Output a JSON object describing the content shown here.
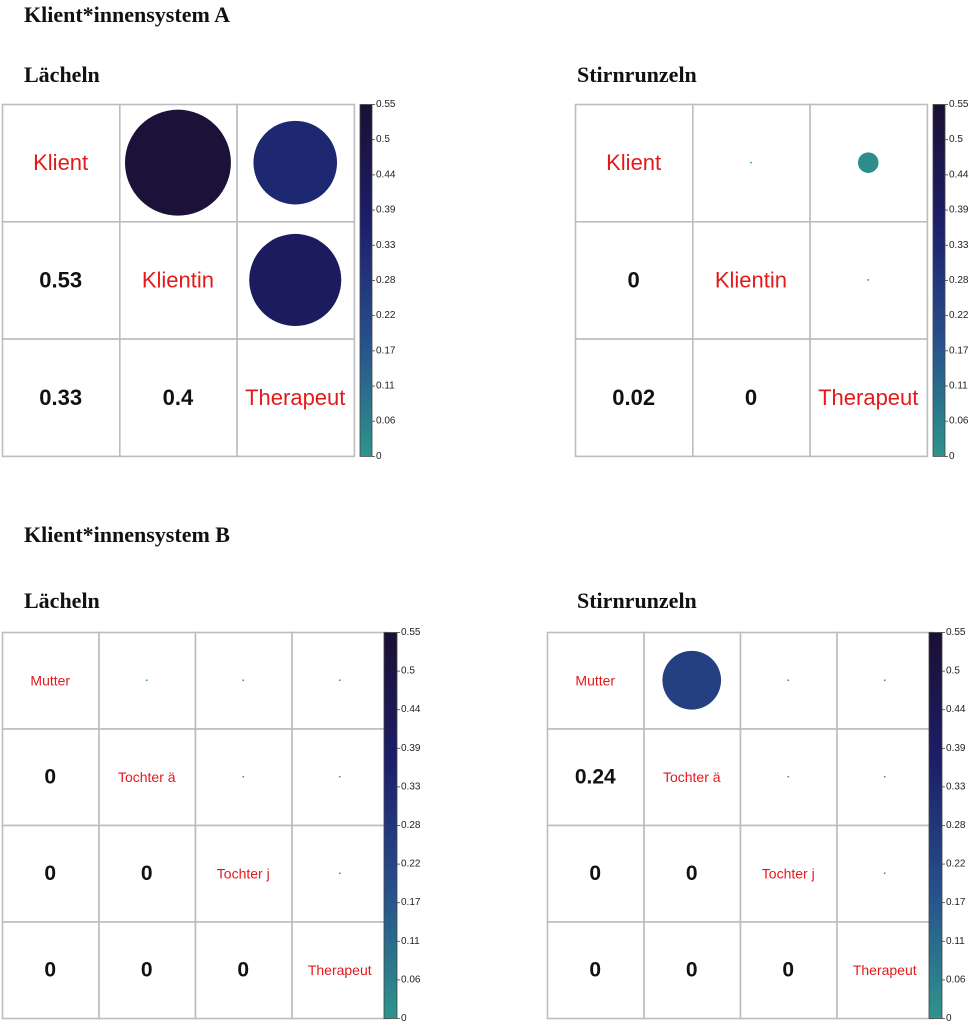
{
  "sections": [
    {
      "title": "Klient*innensystem A"
    },
    {
      "title": "Klient*innensystem B"
    }
  ],
  "chart_data": [
    {
      "type": "heatmap",
      "subtype": "correlation-plot-mixed",
      "section": "Klient*innensystem A",
      "title": "Lächeln",
      "variables": [
        "Klient",
        "Klientin",
        "Therapeut"
      ],
      "matrix": [
        [
          1,
          0.53,
          0.33
        ],
        [
          0.53,
          1,
          0.4
        ],
        [
          0.33,
          0.4,
          1
        ]
      ],
      "upper": "circle",
      "lower": "number",
      "diagonal": "variable-name",
      "colorbar": {
        "min": 0,
        "max": 0.55,
        "ticks": [
          "0",
          "0.06",
          "0.11",
          "0.17",
          "0.22",
          "0.28",
          "0.33",
          "0.39",
          "0.44",
          "0.5",
          "0.55"
        ],
        "colors": [
          "#2e948c",
          "#274f8c",
          "#1c1e6a",
          "#1b0f33"
        ]
      }
    },
    {
      "type": "heatmap",
      "subtype": "correlation-plot-mixed",
      "section": "Klient*innensystem A",
      "title": "Stirnrunzeln",
      "variables": [
        "Klient",
        "Klientin",
        "Therapeut"
      ],
      "matrix": [
        [
          1,
          0,
          0.02
        ],
        [
          0,
          1,
          0
        ],
        [
          0.02,
          0,
          1
        ]
      ],
      "upper": "circle",
      "lower": "number",
      "diagonal": "variable-name",
      "colorbar": {
        "min": 0,
        "max": 0.55,
        "ticks": [
          "0",
          "0.06",
          "0.11",
          "0.17",
          "0.22",
          "0.28",
          "0.33",
          "0.39",
          "0.44",
          "0.5",
          "0.55"
        ],
        "colors": [
          "#2e948c",
          "#274f8c",
          "#1c1e6a",
          "#1b0f33"
        ]
      }
    },
    {
      "type": "heatmap",
      "subtype": "correlation-plot-mixed",
      "section": "Klient*innensystem B",
      "title": "Lächeln",
      "variables": [
        "Mutter",
        "Tochter ä",
        "Tochter j",
        "Therapeut"
      ],
      "matrix": [
        [
          1,
          0,
          0,
          0
        ],
        [
          0,
          1,
          0,
          0
        ],
        [
          0,
          0,
          1,
          0
        ],
        [
          0,
          0,
          0,
          1
        ]
      ],
      "upper": "circle",
      "lower": "number",
      "diagonal": "variable-name",
      "colorbar": {
        "min": 0,
        "max": 0.55,
        "ticks": [
          "0",
          "0.06",
          "0.11",
          "0.17",
          "0.22",
          "0.28",
          "0.33",
          "0.39",
          "0.44",
          "0.5",
          "0.55"
        ],
        "colors": [
          "#2e948c",
          "#274f8c",
          "#1c1e6a",
          "#1b0f33"
        ]
      }
    },
    {
      "type": "heatmap",
      "subtype": "correlation-plot-mixed",
      "section": "Klient*innensystem B",
      "title": "Stirnrunzeln",
      "variables": [
        "Mutter",
        "Tochter ä",
        "Tochter j",
        "Therapeut"
      ],
      "matrix": [
        [
          1,
          0.24,
          0,
          0
        ],
        [
          0.24,
          1,
          0,
          0
        ],
        [
          0,
          0,
          1,
          0
        ],
        [
          0,
          0,
          0,
          1
        ]
      ],
      "upper": "circle",
      "lower": "number",
      "diagonal": "variable-name",
      "colorbar": {
        "min": 0,
        "max": 0.55,
        "ticks": [
          "0",
          "0.06",
          "0.11",
          "0.17",
          "0.22",
          "0.28",
          "0.33",
          "0.39",
          "0.44",
          "0.5",
          "0.55"
        ],
        "colors": [
          "#2e948c",
          "#274f8c",
          "#1c1e6a",
          "#1b0f33"
        ]
      }
    }
  ]
}
